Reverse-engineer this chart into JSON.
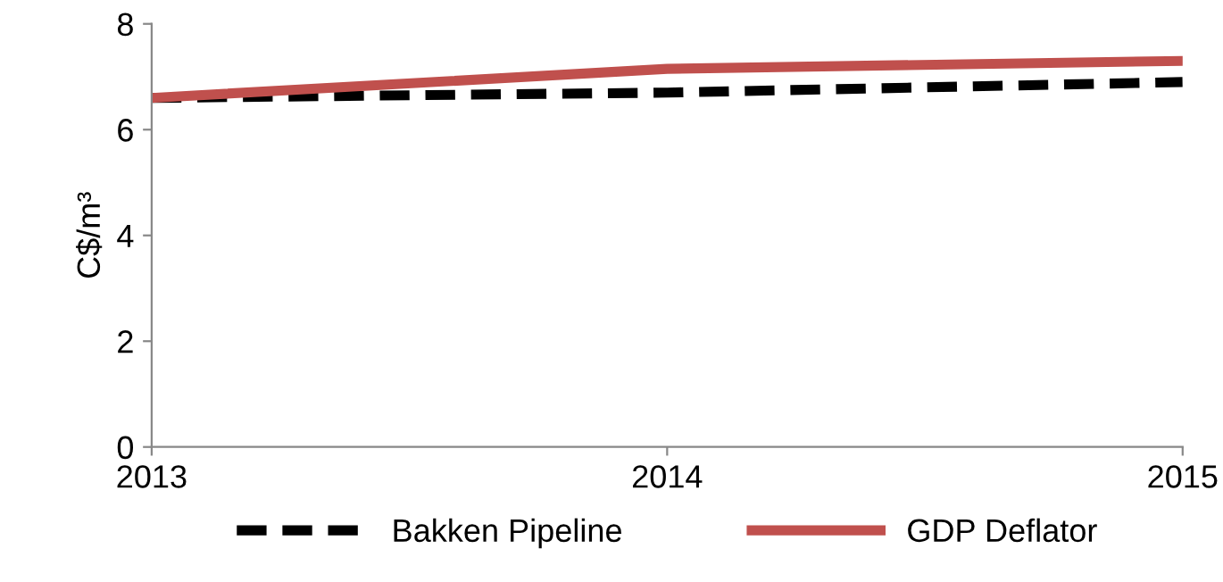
{
  "chart_data": {
    "type": "line",
    "ylabel": "C$/m³",
    "x": [
      2013,
      2014,
      2015
    ],
    "xlim": [
      2013,
      2015
    ],
    "xticks": [
      2013,
      2014,
      2015
    ],
    "ylim": [
      0,
      8
    ],
    "yticks": [
      0,
      2,
      4,
      6,
      8
    ],
    "grid": false,
    "legend": "bottom",
    "marker": "none",
    "series": [
      {
        "name": "Bakken Pipeline",
        "color": "#000000",
        "line_style": "dashed",
        "values": [
          6.6,
          6.7,
          6.9
        ]
      },
      {
        "name": "GDP Deflator",
        "color": "#c0504d",
        "line_style": "solid",
        "values": [
          6.6,
          7.15,
          7.3
        ]
      }
    ]
  }
}
